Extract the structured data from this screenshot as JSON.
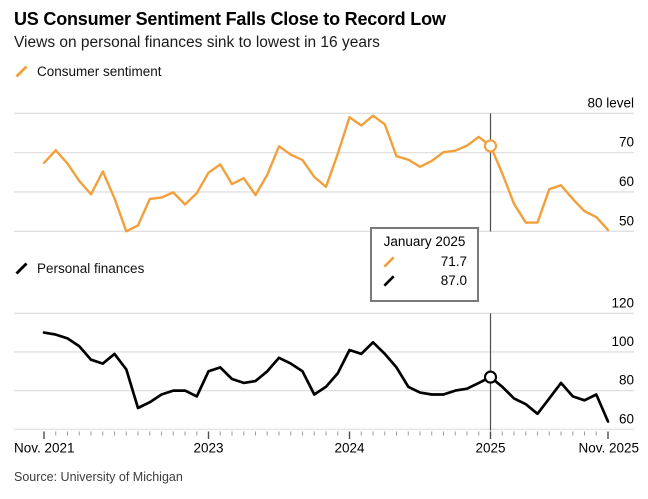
{
  "header": {
    "title": "US Consumer Sentiment Falls Close to Record Low",
    "subtitle": "Views on personal finances sink to lowest in 16 years"
  },
  "source": "Source: University of Michigan",
  "colors": {
    "sentiment": "#F1A03C",
    "finances": "#000000",
    "grid": "#E0E0E0",
    "crosshair": "#4d4d4d",
    "tick_minor": "#9b9b9b",
    "tick_major": "#4d4d4d",
    "axis_text": "#000000"
  },
  "legends": [
    {
      "label": "Consumer sentiment"
    },
    {
      "label": "Personal finances"
    }
  ],
  "tooltip": {
    "date": "January 2025",
    "rows": [
      {
        "series": "Consumer sentiment",
        "value": "71.7"
      },
      {
        "series": "Personal finances",
        "value": "87.0"
      }
    ]
  },
  "chart_data": [
    {
      "type": "line",
      "name": "Consumer sentiment",
      "x_start": "Nov. 2021",
      "x_end": "Nov. 2025",
      "frequency": "monthly",
      "ylim": [
        47,
        82
      ],
      "grid": true,
      "yticks": [
        {
          "value": 80,
          "label": "80 level"
        },
        {
          "value": 70,
          "label": "70"
        },
        {
          "value": 60,
          "label": "60"
        },
        {
          "value": 50,
          "label": "50"
        }
      ],
      "values": [
        67.4,
        70.6,
        67.2,
        62.8,
        59.4,
        65.2,
        58.4,
        50.0,
        51.5,
        58.2,
        58.6,
        59.9,
        56.8,
        59.7,
        64.9,
        67.0,
        62.0,
        63.5,
        59.2,
        64.4,
        71.6,
        69.5,
        68.1,
        63.8,
        61.3,
        69.7,
        79.0,
        76.9,
        79.4,
        77.2,
        69.1,
        68.2,
        66.4,
        67.9,
        70.1,
        70.5,
        71.8,
        74.0,
        71.7,
        64.7,
        57.0,
        52.2,
        52.2,
        60.7,
        61.7,
        58.2,
        55.1,
        53.6,
        50.3
      ],
      "highlight": {
        "label": "January 2025",
        "index": 38,
        "value": 71.7
      }
    },
    {
      "type": "line",
      "name": "Personal finances",
      "x_start": "Nov. 2021",
      "x_end": "Nov. 2025",
      "frequency": "monthly",
      "ylim": [
        58,
        122
      ],
      "grid": true,
      "yticks": [
        {
          "value": 120,
          "label": "120"
        },
        {
          "value": 100,
          "label": "100"
        },
        {
          "value": 80,
          "label": "80"
        },
        {
          "value": 60,
          "label": "60"
        }
      ],
      "values": [
        110,
        109,
        107,
        103,
        96,
        94,
        99,
        91,
        71,
        74,
        78,
        80,
        80,
        77,
        90,
        92,
        86,
        84,
        85,
        90,
        97,
        94,
        90,
        78,
        82,
        89,
        101,
        99,
        105,
        99,
        92,
        82,
        79,
        78,
        78,
        80,
        81,
        84,
        87,
        82,
        76,
        73,
        68,
        76,
        84,
        77,
        75,
        78,
        64
      ],
      "highlight": {
        "label": "January 2025",
        "index": 38,
        "value": 87.0
      }
    }
  ],
  "xaxis": {
    "labels": [
      {
        "text": "Nov. 2021",
        "month_index": 0
      },
      {
        "text": "2023",
        "month_index": 14
      },
      {
        "text": "2024",
        "month_index": 26
      },
      {
        "text": "2025",
        "month_index": 38
      },
      {
        "text": "Nov. 2025",
        "month_index": 48
      }
    ],
    "months_total": 49
  }
}
